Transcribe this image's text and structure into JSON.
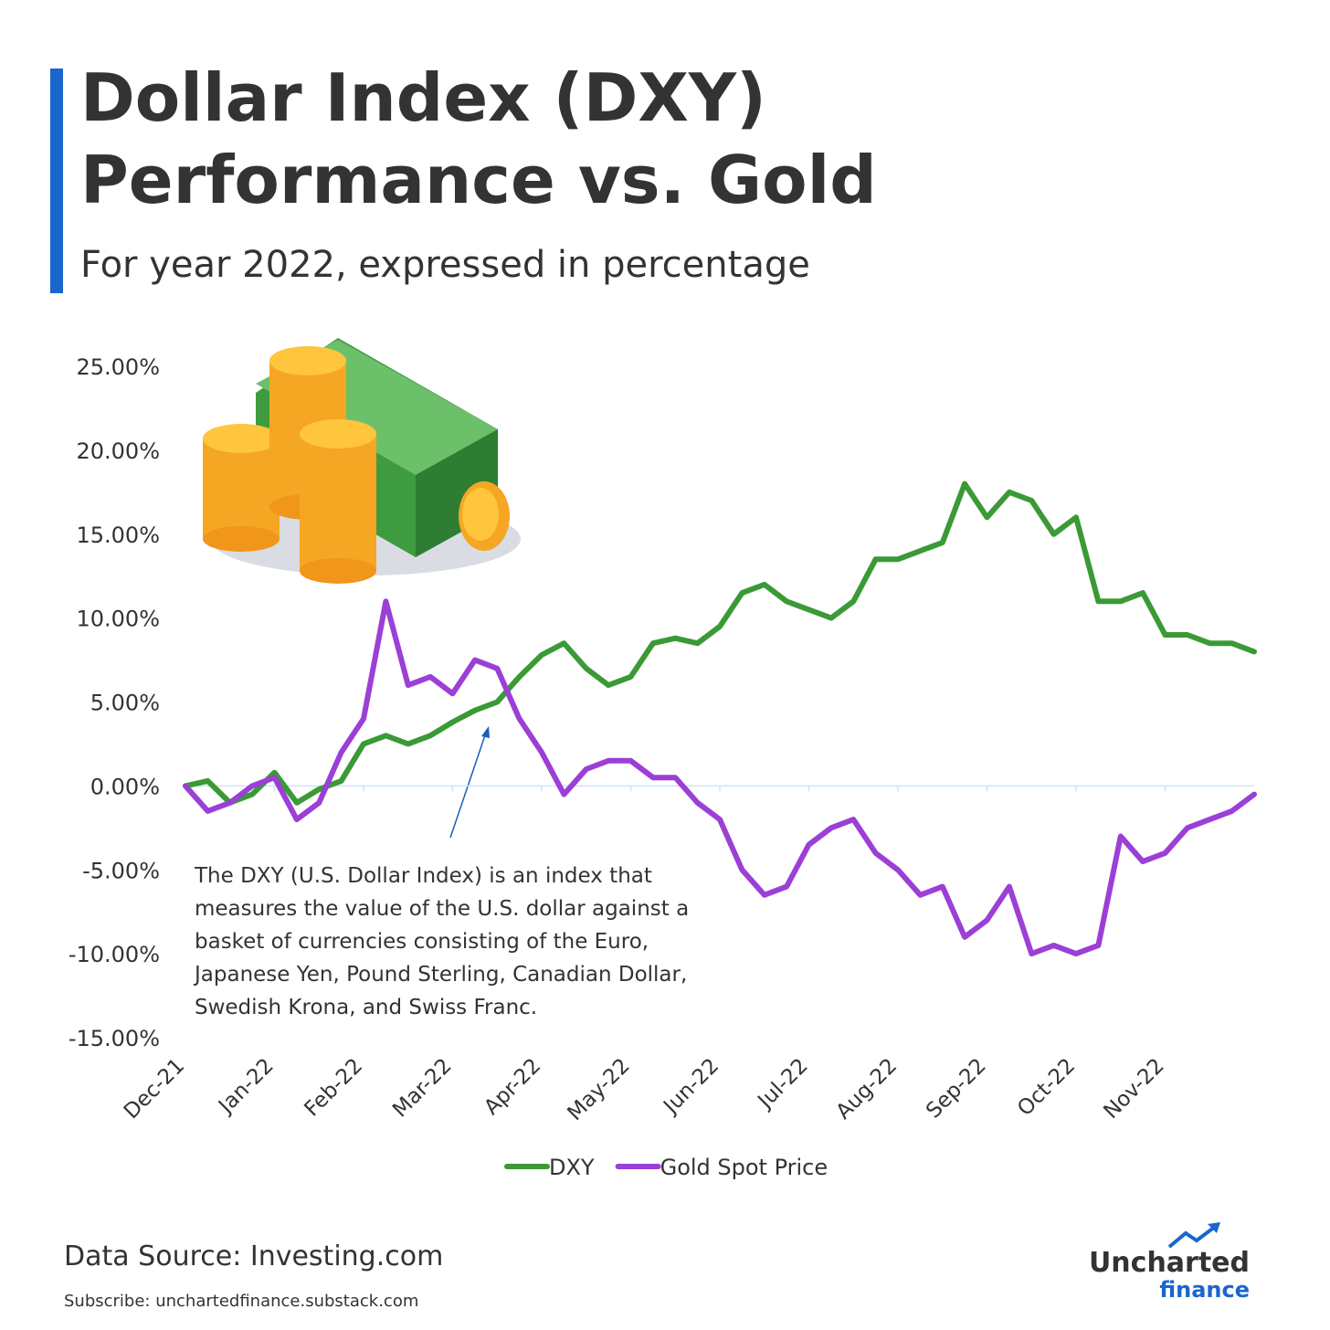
{
  "chart_data": {
    "type": "line",
    "title": [
      "Dollar Index (DXY)",
      "Performance vs. Gold"
    ],
    "subtitle": "For year 2022, expressed in percentage",
    "x": [
      "Dec-21",
      null,
      null,
      null,
      "Jan-22",
      null,
      null,
      null,
      "Feb-22",
      null,
      null,
      null,
      "Mar-22",
      null,
      null,
      null,
      "Apr-22",
      null,
      null,
      null,
      "May-22",
      null,
      null,
      null,
      "Jun-22",
      null,
      null,
      null,
      "Jul-22",
      null,
      null,
      null,
      "Aug-22",
      null,
      null,
      null,
      "Sep-22",
      null,
      null,
      null,
      "Oct-22",
      null,
      null,
      null,
      "Nov-22",
      null,
      null,
      null,
      null
    ],
    "series": [
      {
        "name": "DXY",
        "color": "#3a9a35",
        "values": [
          0,
          0.3,
          -1.0,
          -0.5,
          0.8,
          -1.0,
          -0.2,
          0.3,
          2.5,
          3.0,
          2.5,
          3.0,
          3.8,
          4.5,
          5.0,
          6.5,
          7.8,
          8.5,
          7.0,
          6.0,
          6.5,
          8.5,
          8.8,
          8.5,
          9.5,
          11.5,
          12.0,
          11.0,
          10.5,
          10.0,
          11.0,
          13.5,
          13.5,
          14.0,
          14.5,
          18.0,
          16.0,
          17.5,
          17.0,
          15.0,
          16.0,
          11.0,
          11.0,
          11.5,
          9.0,
          9.0,
          8.5,
          8.5,
          8.0
        ]
      },
      {
        "name": "Gold Spot Price",
        "color": "#9b3fd6",
        "values": [
          0,
          -1.5,
          -1.0,
          0,
          0.5,
          -2.0,
          -1.0,
          2.0,
          4.0,
          11.0,
          6.0,
          6.5,
          5.5,
          7.5,
          7.0,
          4.0,
          2.0,
          -0.5,
          1.0,
          1.5,
          1.5,
          0.5,
          0.5,
          -1.0,
          -2.0,
          -5.0,
          -6.5,
          -6.0,
          -3.5,
          -2.5,
          -2.0,
          -4.0,
          -5.0,
          -6.5,
          -6.0,
          -9.0,
          -8.0,
          -6.0,
          -10.0,
          -9.5,
          -10.0,
          -9.5,
          -3.0,
          -4.5,
          -4.0,
          -2.5,
          -2.0,
          -1.5,
          -0.5
        ]
      }
    ],
    "ylim": [
      -15,
      25
    ],
    "yticks": [
      {
        "value": 25,
        "label": "25.00%"
      },
      {
        "value": 20,
        "label": "20.00%"
      },
      {
        "value": 15,
        "label": "15.00%"
      },
      {
        "value": 10,
        "label": "10.00%"
      },
      {
        "value": 5,
        "label": "5.00%"
      },
      {
        "value": 0,
        "label": "0.00%"
      },
      {
        "value": -5,
        "label": "-5.00%"
      },
      {
        "value": -10,
        "label": "-10.00%"
      },
      {
        "value": -15,
        "label": "-15.00%"
      }
    ],
    "annotation": [
      "The DXY (U.S. Dollar Index) is an index that",
      "measures the value of the U.S. dollar against a",
      "basket of currencies consisting of the Euro,",
      "Japanese Yen, Pound Sterling, Canadian Dollar,",
      "Swedish Krona, and Swiss Franc."
    ],
    "source": "Data Source: Investing.com",
    "subscribe": "Subscribe: unchartedfinance.substack.com",
    "logo": [
      "Uncharted",
      "finance"
    ]
  }
}
